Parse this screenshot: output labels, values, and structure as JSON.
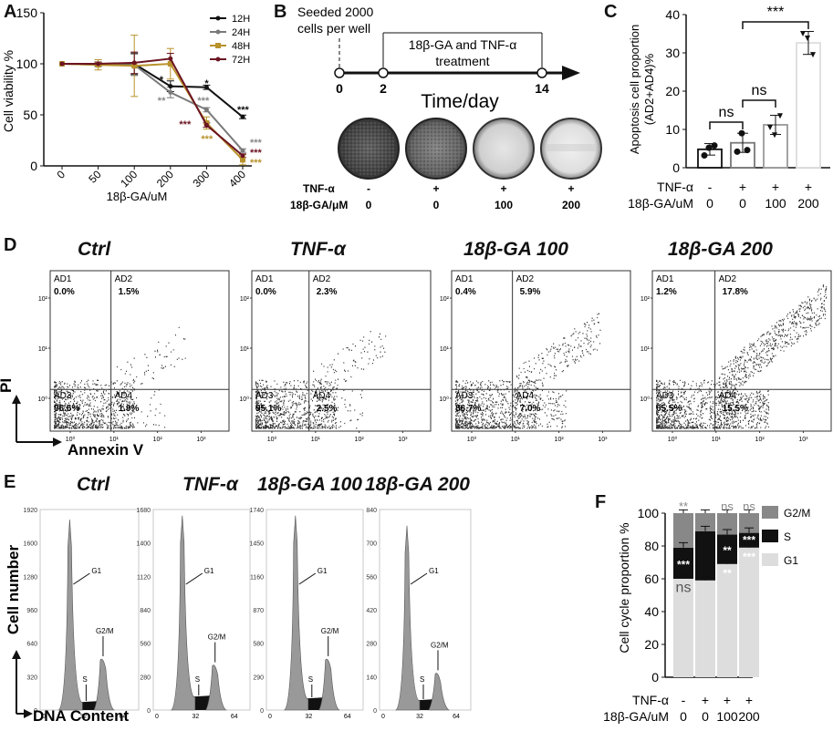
{
  "panels": {
    "A": "A",
    "B": "B",
    "C": "C",
    "D": "D",
    "E": "E",
    "F": "F"
  },
  "panel_a": {
    "ylabel": "Cell viability %",
    "xlabel": "18β-GA/uM",
    "x_ticks": [
      "0",
      "50",
      "100",
      "200",
      "300",
      "400"
    ],
    "y_ticks": [
      "0",
      "50",
      "100",
      "150"
    ],
    "legend": [
      "12H",
      "24H",
      "48H",
      "72H"
    ],
    "colors": [
      "#111111",
      "#7a7a7a",
      "#b8922b",
      "#6b1422"
    ],
    "series": [
      {
        "name": "12H",
        "values": [
          100,
          100,
          100,
          78,
          77,
          48
        ]
      },
      {
        "name": "24H",
        "values": [
          100,
          99,
          99,
          72,
          55,
          15
        ]
      },
      {
        "name": "48H",
        "values": [
          100,
          99,
          98,
          100,
          42,
          6
        ]
      },
      {
        "name": "72H",
        "values": [
          100,
          100,
          101,
          105,
          40,
          10
        ]
      }
    ],
    "error": [
      0,
      5,
      30,
      15,
      6,
      5
    ],
    "sig": {
      "s200a": "*",
      "s200b": "**",
      "s300a": "*",
      "s300b": "***",
      "s300c": "***",
      "s300d": "***",
      "s400a": "***",
      "s400b": "***",
      "s400c": "***",
      "s400d": "***"
    }
  },
  "panel_b": {
    "seeded": "Seeded 2000",
    "seeded2": "cells per well",
    "treatment": "18β-GA and TNF-α",
    "treatment2": "treatment",
    "timeline_ticks": [
      "0",
      "2",
      "14"
    ],
    "time_label": "Time/day",
    "tnf_label": "TNF-α",
    "ga_label": "18β-GA/μM",
    "tnf_values": [
      "-",
      "+",
      "+",
      "+"
    ],
    "ga_values": [
      "0",
      "0",
      "100",
      "200"
    ]
  },
  "panel_c": {
    "ylabel1": "Apoptosis cell proportion",
    "ylabel2": "(AD2+AD4)%",
    "y_ticks": [
      "0",
      "10",
      "20",
      "30",
      "40"
    ],
    "tnf_label": "TNF-α",
    "ga_label": "18β-GA/uM",
    "tnf_values": [
      "-",
      "+",
      "+",
      "+"
    ],
    "ga_values": [
      "0",
      "0",
      "100",
      "200"
    ],
    "values": [
      4.8,
      6.5,
      11.2,
      32.6
    ],
    "errors": [
      1.5,
      2.5,
      2.5,
      3.0
    ],
    "points": [
      [
        3.2,
        5.8,
        5.2
      ],
      [
        4.2,
        4.6,
        9.0
      ],
      [
        10.5,
        13.5,
        8.5
      ],
      [
        35.0,
        29.5,
        33.8
      ]
    ],
    "bar_colors": [
      "#111111",
      "#777777",
      "#999999",
      "#dddddd"
    ],
    "sig": {
      "ns1": "ns",
      "ns2": "ns",
      "stars": "***"
    }
  },
  "panel_d": {
    "titles": [
      "Ctrl",
      "TNF-α",
      "18β-GA 100",
      "18β-GA 200"
    ],
    "ylabel": "PI",
    "xlabel": "Annexin V",
    "quad_names": [
      "AD1",
      "AD2",
      "AD3",
      "AD4"
    ],
    "quadrants": [
      [
        "0.0%",
        "1.5%",
        "96.6%",
        "1.9%"
      ],
      [
        "0.0%",
        "2.3%",
        "95.1%",
        "2.5%"
      ],
      [
        "0.4%",
        "5.9%",
        "86.7%",
        "7.0%"
      ],
      [
        "1.2%",
        "17.8%",
        "65.5%",
        "15.5%"
      ]
    ],
    "axis_ticks": [
      "10⁰",
      "10¹",
      "10²",
      "10³"
    ]
  },
  "panel_e": {
    "titles": [
      "Ctrl",
      "TNF-α",
      "18β-GA 100",
      "18β-GA 200"
    ],
    "ylabel": "Cell number",
    "xlabel": "DNA Content",
    "y_ticks": [
      [
        "1920",
        "1600",
        "1280",
        "960",
        "640",
        "320",
        "0"
      ],
      [
        "1680",
        "1400",
        "1120",
        "840",
        "560",
        "280",
        "0"
      ],
      [
        "1740",
        "1450",
        "1160",
        "870",
        "580",
        "290",
        "0"
      ],
      [
        "840",
        "700",
        "560",
        "420",
        "280",
        "140",
        "0"
      ]
    ],
    "x_ticks": [
      "0",
      "32",
      "64"
    ],
    "peaks": [
      "G1",
      "G2/M",
      "S"
    ]
  },
  "panel_f": {
    "ylabel": "Cell cycle proportion %",
    "y_ticks": [
      "0",
      "20",
      "40",
      "60",
      "80",
      "100"
    ],
    "tnf_label": "TNF-α",
    "ga_label": "18β-GA/uM",
    "tnf_values": [
      "-",
      "+",
      "+",
      "+"
    ],
    "ga_values": [
      "0",
      "0",
      "100",
      "200"
    ],
    "legend": [
      "G2/M",
      "S",
      "G1"
    ],
    "colors": [
      "#888888",
      "#111111",
      "#dddddd"
    ],
    "g1": [
      60,
      59,
      69,
      79
    ],
    "s": [
      19,
      30,
      18,
      9
    ],
    "g2m": [
      21,
      11,
      13,
      12
    ],
    "sig_top": [
      "**",
      "",
      "ns",
      "ns"
    ],
    "sig_mid": [
      "***",
      "",
      "**",
      "***"
    ],
    "sig_low": [
      "ns",
      "",
      "**",
      "***"
    ]
  }
}
